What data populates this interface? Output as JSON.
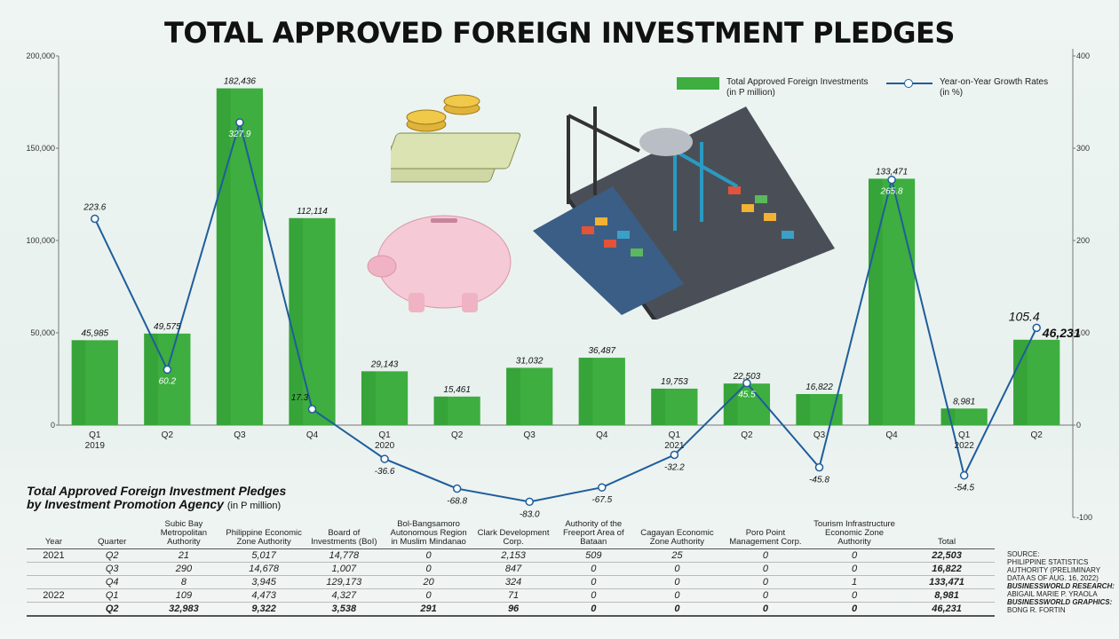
{
  "title": "TOTAL APPROVED FOREIGN INVESTMENT PLEDGES",
  "legend": {
    "bars_label": "Total Approved Foreign Investments",
    "bars_unit": "(in P million)",
    "line_label": "Year-on-Year Growth Rates",
    "line_unit": "(in %)"
  },
  "colors": {
    "bar": "#3dae3f",
    "line": "#1f5d9c"
  },
  "chart_data": {
    "type": "bar",
    "categories": [
      "Q1 2019",
      "Q2",
      "Q3",
      "Q4",
      "Q1 2020",
      "Q2",
      "Q3",
      "Q4",
      "Q1 2021",
      "Q2",
      "Q3",
      "Q4",
      "Q1 2022",
      "Q2"
    ],
    "tick_labels": [
      [
        "Q1",
        "2019"
      ],
      [
        "Q2",
        ""
      ],
      [
        "Q3",
        ""
      ],
      [
        "Q4",
        ""
      ],
      [
        "Q1",
        "2020"
      ],
      [
        "Q2",
        ""
      ],
      [
        "Q3",
        ""
      ],
      [
        "Q4",
        ""
      ],
      [
        "Q1",
        "2021"
      ],
      [
        "Q2",
        ""
      ],
      [
        "Q3",
        ""
      ],
      [
        "Q4",
        ""
      ],
      [
        "Q1",
        "2022"
      ],
      [
        "Q2",
        ""
      ]
    ],
    "series": [
      {
        "type": "bar",
        "values": [
          45985,
          49575,
          182436,
          112114,
          29143,
          15461,
          31032,
          36487,
          19753,
          22503,
          16822,
          133471,
          8981,
          46231
        ],
        "labels": [
          "45,985",
          "49,575",
          "182,436",
          "112,114",
          "29,143",
          "15,461",
          "31,032",
          "36,487",
          "19,753",
          "22,503",
          "16,822",
          "133,471",
          "8,981",
          "46,231"
        ]
      },
      {
        "type": "line",
        "values": [
          223.6,
          60.2,
          327.9,
          17.3,
          -36.6,
          -68.8,
          -83.0,
          -67.5,
          -32.2,
          45.5,
          -45.8,
          265.8,
          -54.5,
          105.4
        ],
        "labels": [
          "223.6",
          "60.2",
          "327.9",
          "17.3",
          "-36.6",
          "-68.8",
          "-83.0",
          "-67.5",
          "-32.2",
          "45.5",
          "-45.8",
          "265.8",
          "-54.5",
          "105.4"
        ]
      }
    ],
    "y_left": {
      "ylim": [
        0,
        200000
      ],
      "ticks": [
        "0",
        "50,000",
        "100,000",
        "150,000",
        "200,000"
      ],
      "values": [
        0,
        50000,
        100000,
        150000,
        200000
      ]
    },
    "y_right": {
      "ylim": [
        -100,
        400
      ],
      "ticks": [
        "-100",
        "0",
        "100",
        "200",
        "300",
        "400"
      ],
      "values": [
        -100,
        0,
        100,
        200,
        300,
        400
      ]
    },
    "legend_position": "top-right",
    "grid": false
  },
  "table": {
    "title": "Total Approved Foreign Investment Pledges",
    "title2": "by Investment Promotion Agency",
    "unit": "(in P million)",
    "headers": [
      "Year",
      "Quarter",
      "Subic Bay Metropolitan Authority",
      "Philippine Economic Zone Authority",
      "Board of Investments (BoI)",
      "Bol-Bangsamoro Autonomous Region in Muslim Mindanao",
      "Clark Development Corp.",
      "Authority of the Freeport Area of Bataan",
      "Cagayan Economic Zone Authority",
      "Poro Point Management Corp.",
      "Tourism Infrastructure Economic Zone Authority",
      "Total"
    ],
    "rows": [
      [
        "2021",
        "Q2",
        "21",
        "5,017",
        "14,778",
        "0",
        "2,153",
        "509",
        "25",
        "0",
        "0",
        "22,503"
      ],
      [
        "",
        "Q3",
        "290",
        "14,678",
        "1,007",
        "0",
        "847",
        "0",
        "0",
        "0",
        "0",
        "16,822"
      ],
      [
        "",
        "Q4",
        "8",
        "3,945",
        "129,173",
        "20",
        "324",
        "0",
        "0",
        "0",
        "1",
        "133,471"
      ],
      [
        "2022",
        "Q1",
        "109",
        "4,473",
        "4,327",
        "0",
        "71",
        "0",
        "0",
        "0",
        "0",
        "8,981"
      ],
      [
        "",
        "Q2",
        "32,983",
        "9,322",
        "3,538",
        "291",
        "96",
        "0",
        "0",
        "0",
        "0",
        "46,231"
      ]
    ]
  },
  "source": {
    "label": "SOURCE:",
    "text": "PHILIPPINE STATISTICS AUTHORITY (PRELIMINARY DATA AS OF AUG. 16, 2022)",
    "research_label": "BUSINESSWORLD RESEARCH:",
    "research": "ABIGAIL MARIE P. YRAOLA",
    "graphics_label": "BUSINESSWORLD GRAPHICS:",
    "graphics": "BONG R. FORTIN"
  }
}
